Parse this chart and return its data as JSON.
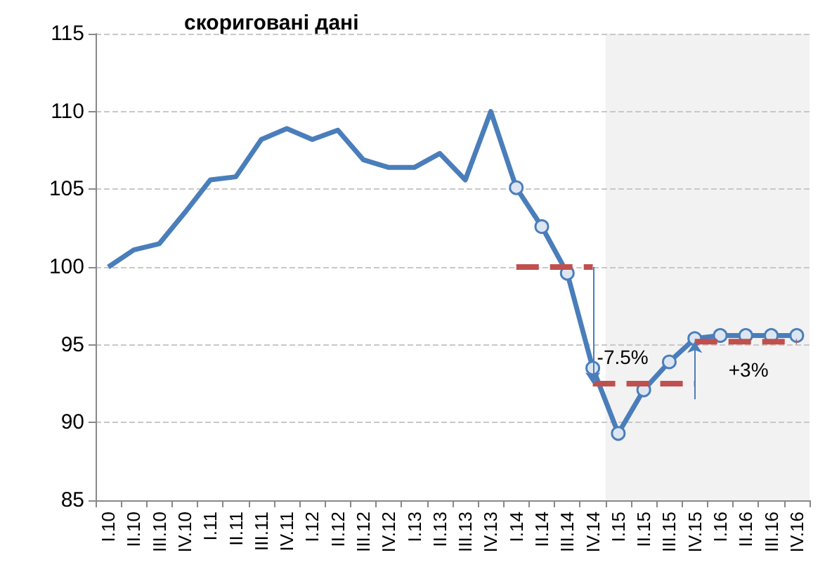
{
  "chart_data": {
    "type": "line",
    "title": "скориговані дані",
    "categories": [
      "I.10",
      "II.10",
      "III.10",
      "IV.10",
      "I.11",
      "II.11",
      "III.11",
      "IV.11",
      "I.12",
      "II.12",
      "III.12",
      "IV.12",
      "I.13",
      "II.13",
      "III.13",
      "IV.13",
      "I.14",
      "II.14",
      "III.14",
      "IV.14",
      "I.15",
      "II.15",
      "III.15",
      "IV.15",
      "I.16",
      "II.16",
      "III.16",
      "IV.16"
    ],
    "series": [
      {
        "color": "#4a7ebb",
        "marker": "none",
        "line_style": "solid",
        "values": [
          100.0,
          101.1,
          101.5,
          103.5,
          105.6,
          105.8,
          108.2,
          108.9,
          108.2,
          108.8,
          106.9,
          106.4,
          106.4,
          107.3,
          105.6,
          110.0,
          105.1,
          null,
          null,
          null,
          null,
          null,
          null,
          null,
          null,
          null,
          null,
          null
        ]
      },
      {
        "color": "#4a7ebb",
        "marker": "circle",
        "line_style": "solid",
        "values": [
          null,
          null,
          null,
          null,
          null,
          null,
          null,
          null,
          null,
          null,
          null,
          null,
          null,
          null,
          null,
          null,
          105.1,
          102.6,
          99.6,
          93.5,
          89.3,
          92.1,
          93.9,
          95.4,
          95.6,
          95.6,
          95.6,
          95.6
        ]
      },
      {
        "color": "#c0504d",
        "marker": "none",
        "line_style": "dashed",
        "values": [
          null,
          null,
          null,
          null,
          null,
          null,
          null,
          null,
          null,
          null,
          null,
          null,
          null,
          null,
          null,
          null,
          100,
          100,
          100,
          100,
          null,
          null,
          null,
          null,
          null,
          null,
          null,
          null
        ]
      },
      {
        "color": "#c0504d",
        "marker": "none",
        "line_style": "dashed",
        "values": [
          null,
          null,
          null,
          null,
          null,
          null,
          null,
          null,
          null,
          null,
          null,
          null,
          null,
          null,
          null,
          null,
          null,
          null,
          null,
          92.5,
          92.5,
          92.5,
          92.5,
          92.5,
          null,
          null,
          null,
          null
        ]
      },
      {
        "color": "#c0504d",
        "marker": "none",
        "line_style": "dashed",
        "values": [
          null,
          null,
          null,
          null,
          null,
          null,
          null,
          null,
          null,
          null,
          null,
          null,
          null,
          null,
          null,
          null,
          null,
          null,
          null,
          null,
          null,
          null,
          null,
          95.2,
          95.2,
          95.2,
          95.2,
          95.2
        ]
      }
    ],
    "annotations": [
      "-7.5%",
      "+3%"
    ],
    "bands": [
      {
        "axis": "x",
        "from": "I.15",
        "to": "IV.16",
        "color": "#f2f2f2"
      }
    ],
    "ylim": [
      85,
      115
    ],
    "yticks": [
      85,
      90,
      95,
      100,
      105,
      110,
      115
    ],
    "grid": "y"
  }
}
